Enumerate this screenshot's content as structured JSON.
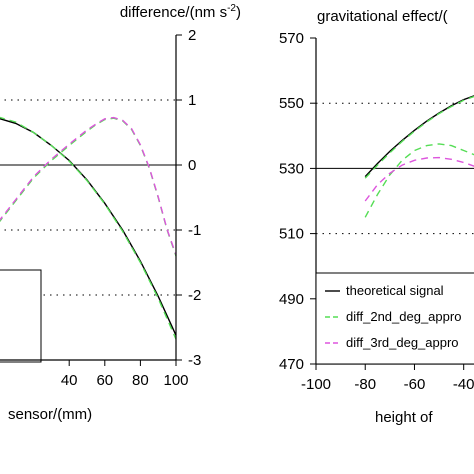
{
  "chart_data": [
    {
      "type": "line",
      "y2label": "difference/(nm s",
      "y2label_sup": "-2",
      "y2label_end": ")",
      "xlabel": "sensor/(mm)",
      "xlim": [
        0,
        100
      ],
      "y2lim": [
        -3,
        2
      ],
      "xticks": [
        "40",
        "60",
        "80",
        "100"
      ],
      "xtick_values": [
        40,
        60,
        80,
        100
      ],
      "y2ticks": [
        "2",
        "1",
        "0",
        "-1",
        "-2",
        "-3"
      ],
      "y2tick_values": [
        2,
        1,
        0,
        -1,
        -2,
        -3
      ],
      "dotted_gridlines_y": [
        1,
        -1,
        -2
      ],
      "zero_line": 0,
      "series": [
        {
          "color": "#000000",
          "dash": "solid",
          "x": [
            0,
            10,
            20,
            30,
            40,
            50,
            60,
            70,
            80,
            90,
            100
          ],
          "y": [
            0.72,
            0.64,
            0.5,
            0.3,
            0.07,
            -0.23,
            -0.59,
            -1.0,
            -1.48,
            -2.02,
            -2.62
          ]
        },
        {
          "color": "#55dd55",
          "dash": "dashed",
          "x": [
            0,
            10,
            20,
            30,
            40,
            50,
            60,
            70,
            80,
            90,
            100
          ],
          "y": [
            0.74,
            0.66,
            0.5,
            0.3,
            0.06,
            -0.24,
            -0.6,
            -1.02,
            -1.5,
            -2.05,
            -2.68
          ]
        },
        {
          "color": "#55dd55",
          "dash": "dashed",
          "x": [
            0,
            10,
            20,
            30,
            40,
            50,
            55,
            60,
            65,
            70,
            75,
            80,
            85,
            90,
            95,
            100
          ],
          "y": [
            -0.9,
            -0.55,
            -0.2,
            0.07,
            0.3,
            0.52,
            0.62,
            0.7,
            0.72,
            0.68,
            0.55,
            0.3,
            -0.05,
            -0.5,
            -1.0,
            -1.4
          ]
        },
        {
          "color": "#dd55dd",
          "dash": "dashed",
          "x": [
            0,
            10,
            20,
            30,
            40,
            50,
            55,
            60,
            65,
            70,
            75,
            80,
            85,
            90,
            95,
            100
          ],
          "y": [
            -0.88,
            -0.53,
            -0.18,
            0.09,
            0.32,
            0.54,
            0.63,
            0.71,
            0.73,
            0.69,
            0.56,
            0.31,
            -0.04,
            -0.49,
            -0.99,
            -1.38
          ]
        }
      ]
    },
    {
      "type": "line",
      "title": "gravitational effect/(",
      "xlabel": "height of",
      "xlim": [
        -100,
        -35
      ],
      "ylim": [
        470,
        570
      ],
      "xticks": [
        "-100",
        "-80",
        "-60",
        "-40"
      ],
      "xtick_values": [
        -100,
        -80,
        -60,
        -40
      ],
      "yticks": [
        "570",
        "550",
        "530",
        "510",
        "490",
        "470"
      ],
      "ytick_values": [
        570,
        550,
        530,
        510,
        490,
        470
      ],
      "dotted_gridlines_y": [
        550,
        510
      ],
      "solid_line_y": 530,
      "legend": {
        "position": "bottom-right",
        "entries": [
          {
            "label": "theoretical signal",
            "color": "#000000",
            "dash": "solid"
          },
          {
            "label": "diff_2nd_deg_appro",
            "color": "#55dd55",
            "dash": "dashed"
          },
          {
            "label": "diff_3rd_deg_appro",
            "color": "#dd55dd",
            "dash": "dashed"
          }
        ]
      },
      "series": [
        {
          "name": "theoretical signal",
          "color": "#000000",
          "dash": "solid",
          "x": [
            -80,
            -75,
            -70,
            -65,
            -60,
            -55,
            -50,
            -45,
            -40,
            -35
          ],
          "y": [
            527.5,
            531.5,
            535.2,
            538.6,
            541.7,
            544.5,
            547.0,
            549.2,
            551.1,
            552.5
          ]
        },
        {
          "name": "diff_2nd_deg_appro",
          "color": "#55dd55",
          "dash": "dashed",
          "x": [
            -80,
            -75,
            -70,
            -65,
            -60,
            -55,
            -50,
            -45,
            -40,
            -35
          ],
          "y": [
            527.0,
            531.0,
            534.8,
            538.3,
            541.4,
            544.3,
            546.8,
            549.0,
            550.9,
            552.3
          ]
        },
        {
          "name": "diff_2nd_deg_appro",
          "color": "#55dd55",
          "dash": "dashed",
          "x": [
            -80,
            -75,
            -70,
            -65,
            -60,
            -55,
            -50,
            -45,
            -40,
            -35
          ],
          "y": [
            515.0,
            522.0,
            528.0,
            532.5,
            535.5,
            537.0,
            537.5,
            537.0,
            535.5,
            534.0
          ]
        },
        {
          "name": "diff_3rd_deg_appro",
          "color": "#dd55dd",
          "dash": "dashed",
          "x": [
            -80,
            -75,
            -70,
            -65,
            -60,
            -55,
            -50,
            -45,
            -40,
            -35
          ],
          "y": [
            520.0,
            525.0,
            528.5,
            531.0,
            532.5,
            533.2,
            533.3,
            532.8,
            531.8,
            530.5
          ]
        }
      ]
    }
  ]
}
